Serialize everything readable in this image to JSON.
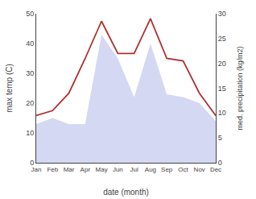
{
  "chart_data": {
    "type": "area",
    "categories": [
      "Jan",
      "Feb",
      "Mar",
      "Apr",
      "May",
      "Jun",
      "Jul",
      "Aug",
      "Sep",
      "Oct",
      "Nov",
      "Dec"
    ],
    "series": [
      {
        "type": "area",
        "color": "#b0b8e8",
        "values": [
          13,
          15,
          13,
          13,
          43,
          35,
          22,
          40,
          23,
          22,
          20,
          14
        ]
      },
      {
        "type": "line",
        "axis": "y2",
        "color": "#b03030",
        "values": [
          9.5,
          10.5,
          14,
          21,
          28.5,
          22,
          22,
          29,
          21,
          20.5,
          14,
          9.5
        ]
      }
    ],
    "xlabel": "date (month)",
    "ylabel": "max temp (C)",
    "y2label": "med. precipitation (kg/m2)",
    "ylim": [
      0,
      50
    ],
    "yticks": [
      0,
      10,
      20,
      30,
      40,
      50
    ],
    "y2lim": [
      0,
      30
    ],
    "y2ticks": [
      0,
      5,
      10,
      15,
      20,
      25,
      30
    ],
    "grid": false
  }
}
